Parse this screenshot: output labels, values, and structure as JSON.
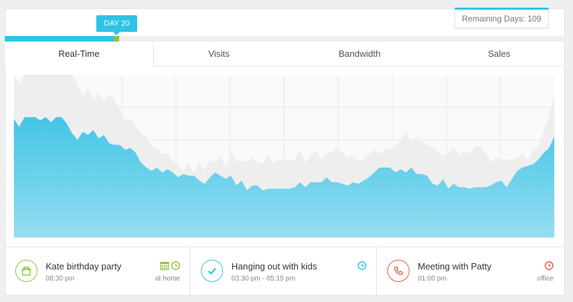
{
  "progress": {
    "day_label": "DAY 20",
    "fraction": 0.2,
    "remaining_label": "Remaining Days: 109",
    "colors": {
      "fill": "#2ec4e6",
      "marker": "#8dc63f",
      "track": "#eeeeee"
    }
  },
  "tabs": [
    {
      "label": "Real-Time",
      "active": true
    },
    {
      "label": "Visits",
      "active": false
    },
    {
      "label": "Bandwidth",
      "active": false
    },
    {
      "label": "Sales",
      "active": false
    }
  ],
  "chart_data": {
    "type": "area",
    "grid": true,
    "ylim": [
      0,
      100
    ],
    "series": [
      {
        "color": "#eeeeee",
        "values": [
          100,
          94,
          100,
          100,
          100,
          100,
          100,
          100,
          100,
          100,
          100,
          100,
          94,
          87,
          91,
          84,
          89,
          84,
          88,
          85,
          79,
          72,
          73,
          69,
          64,
          62,
          56,
          55,
          51,
          52,
          47,
          45,
          41,
          46,
          39,
          46,
          41,
          48,
          46,
          50,
          43,
          52,
          47,
          47,
          47,
          49,
          46,
          45,
          51,
          46,
          48,
          48,
          47,
          48,
          54,
          46,
          50,
          54,
          48,
          52,
          52,
          56,
          52,
          49,
          50,
          47,
          48,
          51,
          54,
          51,
          55,
          54,
          56,
          60,
          65,
          59,
          62,
          59,
          57,
          56,
          53,
          50,
          52,
          56,
          50,
          54,
          51,
          56,
          56,
          52,
          47,
          49,
          48,
          48,
          48,
          49,
          52,
          47,
          54,
          56,
          66,
          75,
          88
        ]
      },
      {
        "color": "#4fc9e8",
        "values": [
          73,
          68,
          74,
          74,
          74,
          72,
          74,
          71,
          74,
          74,
          70,
          64,
          60,
          65,
          63,
          66,
          61,
          63,
          58,
          57,
          57,
          54,
          55,
          52,
          46,
          43,
          41,
          43,
          40,
          42,
          40,
          37,
          39,
          38,
          38,
          35,
          33,
          37,
          40,
          38,
          36,
          38,
          32,
          35,
          29,
          32,
          32,
          29,
          30,
          30,
          30,
          30,
          30,
          31,
          34,
          31,
          34,
          34,
          34,
          37,
          34,
          34,
          33,
          32,
          34,
          33,
          35,
          37,
          40,
          43,
          43,
          43,
          40,
          42,
          40,
          43,
          39,
          39,
          38,
          33,
          32,
          36,
          30,
          33,
          31,
          31,
          30,
          31,
          31,
          31,
          32,
          34,
          35,
          31,
          36,
          41,
          43,
          44,
          45,
          48,
          52,
          55,
          62
        ]
      }
    ]
  },
  "events": [
    {
      "title": "Kate birthday party",
      "time": "08:30 pm",
      "place": "at home",
      "icon": "gift-icon",
      "color": "#8dc63f",
      "side_icons": [
        "calendar-icon",
        "clock-icon"
      ]
    },
    {
      "title": "Hanging out with kids",
      "time": "03:30 pm - 05:15 pm",
      "place": "",
      "icon": "check-icon",
      "color": "#2ec4e6",
      "side_icons": [
        "clock-icon"
      ]
    },
    {
      "title": "Meeting with Patty",
      "time": "01:00 pm",
      "place": "office",
      "icon": "phone-icon",
      "color": "#ee5a45",
      "side_icons": [
        "clock-icon"
      ]
    }
  ]
}
